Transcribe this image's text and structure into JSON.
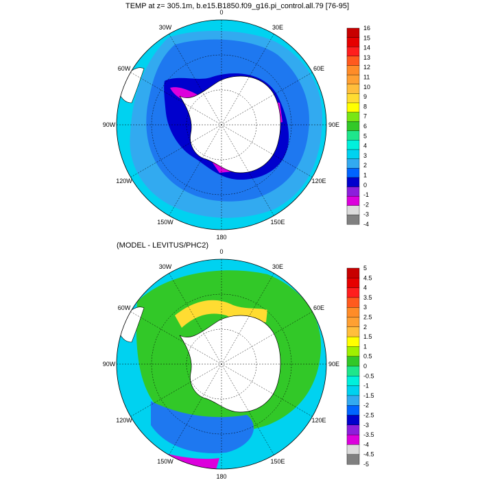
{
  "panels": [
    {
      "title": "TEMP at z= 305.1m, b.e15.B1850.f09_g16.pi_control.all.79 [76-95]",
      "longitude_labels": [
        "0",
        "30E",
        "60E",
        "90E",
        "120E",
        "150E",
        "180",
        "150W",
        "120W",
        "90W",
        "60W",
        "30W"
      ],
      "colorbar": {
        "labels": [
          "16",
          "15",
          "14",
          "13",
          "12",
          "11",
          "10",
          "9",
          "8",
          "7",
          "6",
          "5",
          "4",
          "3",
          "2",
          "1",
          "0",
          "-1",
          "-2",
          "-3",
          "-4"
        ],
        "colors": [
          "#c80000",
          "#e60000",
          "#ff1e1e",
          "#ff5a1e",
          "#ff8c28",
          "#ffa032",
          "#ffbe3c",
          "#ffdc32",
          "#ffff00",
          "#78e614",
          "#32c828",
          "#1ee68c",
          "#00f0dc",
          "#00d2f0",
          "#32aaf0",
          "#0064ff",
          "#0000cd",
          "#8c1edc",
          "#dc00dc",
          "#dcdcdc",
          "#808080"
        ]
      }
    },
    {
      "title": "(MODEL - LEVITUS/PHC2)",
      "longitude_labels": [
        "0",
        "30E",
        "60E",
        "90E",
        "120E",
        "150E",
        "180",
        "150W",
        "120W",
        "90W",
        "60W",
        "30W"
      ],
      "colorbar": {
        "labels": [
          "5",
          "4.5",
          "4",
          "3.5",
          "3",
          "2.5",
          "2",
          "1.5",
          "1",
          "0.5",
          "0",
          "-0.5",
          "-1",
          "-1.5",
          "-2",
          "-2.5",
          "-3",
          "-3.5",
          "-4",
          "-4.5",
          "-5"
        ],
        "colors": [
          "#c80000",
          "#e60000",
          "#ff1e1e",
          "#ff5a1e",
          "#ff8c28",
          "#ffa032",
          "#ffbe3c",
          "#ffff00",
          "#a0f000",
          "#32c828",
          "#1ee68c",
          "#00f0dc",
          "#00d2f0",
          "#32aaf0",
          "#0064ff",
          "#0000cd",
          "#8c1edc",
          "#dc00dc",
          "#dcdcdc",
          "#808080"
        ]
      }
    }
  ]
}
